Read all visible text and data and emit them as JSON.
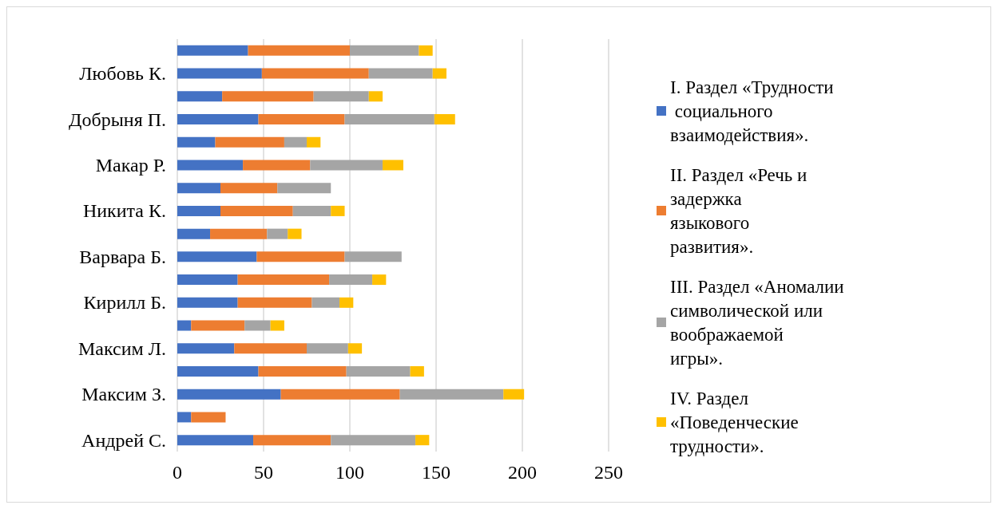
{
  "chart_data": {
    "type": "bar",
    "orientation": "horizontal",
    "stacked": true,
    "categories": [
      null,
      "Любовь К.",
      null,
      "Добрыня П.",
      null,
      "Макар Р.",
      null,
      "Никита К.",
      null,
      "Варвара Б.",
      null,
      "Кирилл Б.",
      null,
      "Максим Л.",
      null,
      "Максим З.",
      null,
      "Андрей С."
    ],
    "series": [
      {
        "name": "I. Раздел «Трудности социального взаимодействия».",
        "color": "#4472c4",
        "values": [
          41,
          49,
          26,
          47,
          22,
          38,
          25,
          25,
          19,
          46,
          35,
          35,
          8,
          33,
          47,
          60,
          8,
          44
        ]
      },
      {
        "name": "II. Раздел «Речь и задержка языкового развития».",
        "color": "#ed7d31",
        "values": [
          59,
          62,
          53,
          50,
          40,
          39,
          33,
          42,
          33,
          51,
          53,
          43,
          31,
          42,
          51,
          69,
          20,
          45
        ]
      },
      {
        "name": "III. Раздел «Аномалии символической или воображаемой игры».",
        "color": "#a5a5a5",
        "values": [
          40,
          37,
          32,
          52,
          13,
          42,
          31,
          22,
          12,
          33,
          25,
          16,
          15,
          24,
          37,
          60,
          null,
          49
        ]
      },
      {
        "name": "IV. Раздел «Поведенческие трудности».",
        "color": "#ffc000",
        "values": [
          8,
          8,
          8,
          12,
          8,
          12,
          null,
          8,
          8,
          null,
          8,
          8,
          8,
          8,
          8,
          12,
          null,
          8
        ]
      }
    ],
    "xlim": [
      0,
      250
    ],
    "xticks": [
      0,
      50,
      100,
      150,
      200,
      250
    ],
    "grid": "x",
    "legend": "right"
  }
}
